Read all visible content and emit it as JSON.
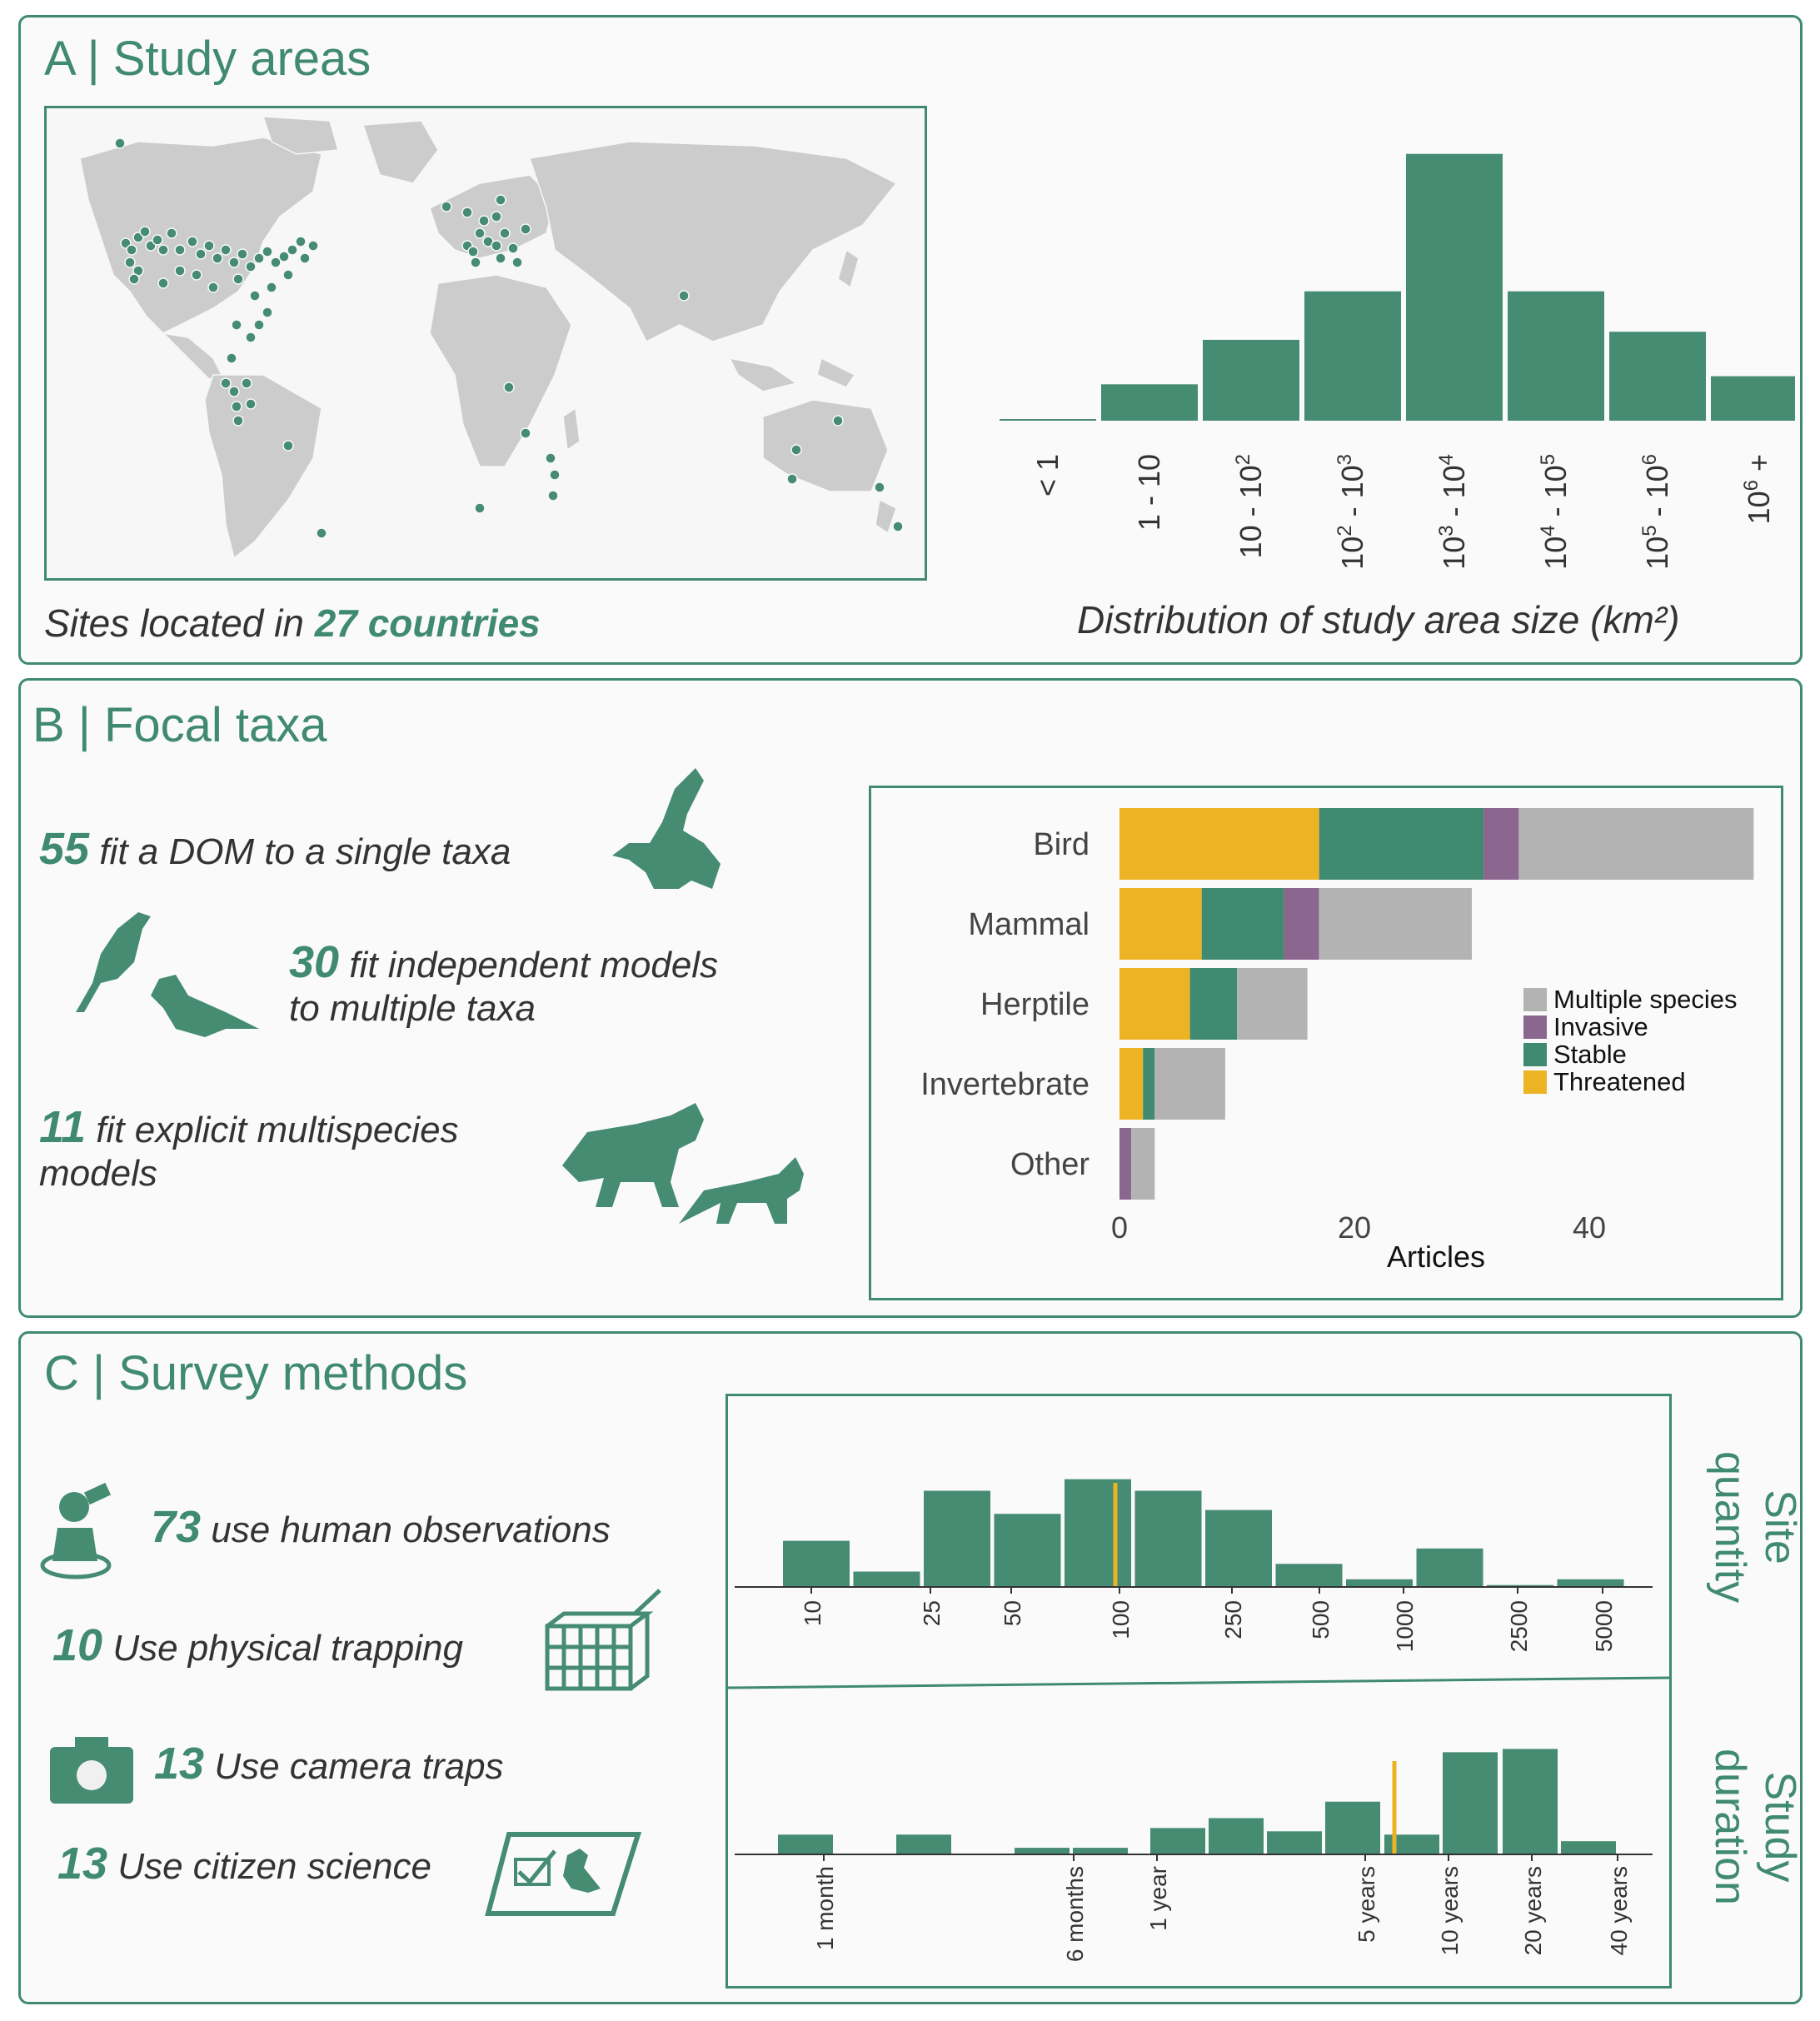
{
  "colors": {
    "accent": "#3f8a70",
    "bar": "#458c73",
    "threatened": "#ecb425",
    "stable": "#3f8a70",
    "invasive": "#8b668e",
    "multiple": "#b3b3b3",
    "land": "#cccccc",
    "median": "#ecb425"
  },
  "panelA": {
    "title": "A | Study areas",
    "caption_prefix": "Sites located in",
    "caption_highlight": "27 countries",
    "hist_caption": "Distribution of study area size (km²)"
  },
  "panelB": {
    "title": "B | Focal taxa",
    "stat1_num": "55",
    "stat1_text": "fit a DOM to a single taxa",
    "stat2_num": "30",
    "stat2_text_line1": "fit independent models",
    "stat2_text_line2": "to multiple taxa",
    "stat3_num": "11",
    "stat3_text_line1": "fit explicit multispecies",
    "stat3_text_line2": "models",
    "icons": [
      "eagle-icon",
      "finches-icon",
      "wolf-fox-icon"
    ]
  },
  "panelC": {
    "title": "C | Survey methods",
    "stat1_num": "73",
    "stat1_text": "use human observations",
    "stat2_num": "10",
    "stat2_text": "Use physical trapping",
    "stat3_num": "13",
    "stat3_text": "Use camera traps",
    "stat4_num": "13",
    "stat4_text": "Use citizen science",
    "icons": [
      "observer-icon",
      "trap-icon",
      "camera-icon",
      "citizen-science-icon"
    ]
  },
  "chart_data": [
    {
      "type": "bar",
      "categories": [
        "< 1",
        "1 - 10",
        "10 - 10^2",
        "10^2 - 10^3",
        "10^3 - 10^4",
        "10^4 - 10^5",
        "10^5 - 10^6",
        "10^6 +"
      ],
      "values": [
        0.2,
        9,
        20,
        32,
        66,
        32,
        22,
        11
      ],
      "ylim": [
        0,
        68
      ],
      "xlabel": "Distribution of study area size (km²)",
      "ylabel": ""
    },
    {
      "type": "bar",
      "orientation": "horizontal",
      "stacked": true,
      "categories": [
        "Bird",
        "Mammal",
        "Herptile",
        "Invertebrate",
        "Other"
      ],
      "series": [
        {
          "name": "Threatened",
          "values": [
            17,
            7,
            6,
            2,
            0
          ]
        },
        {
          "name": "Stable",
          "values": [
            14,
            7,
            4,
            1,
            0
          ]
        },
        {
          "name": "Invasive",
          "values": [
            3,
            3,
            0,
            0,
            1
          ]
        },
        {
          "name": "Multiple species",
          "values": [
            20,
            13,
            6,
            6,
            2
          ]
        }
      ],
      "xlabel": "Articles",
      "xticks": [
        0,
        20,
        40
      ],
      "xlim": [
        0,
        55
      ],
      "legend_order": [
        "Multiple species",
        "Invasive",
        "Stable",
        "Threatened"
      ],
      "legend": "right"
    },
    {
      "type": "bar",
      "title": "Site quantity",
      "ticks": [
        "10",
        "25",
        "50",
        "100",
        "250",
        "500",
        "1000",
        "2500",
        "5000"
      ],
      "values": [
        12,
        4,
        25,
        19,
        28,
        25,
        20,
        6,
        2,
        10,
        0.5,
        2
      ],
      "median": 100
    },
    {
      "type": "bar",
      "title": "Study duration",
      "ticks": [
        "1 month",
        "6 months",
        "1 year",
        "5 years",
        "10 years",
        "20 years",
        "40 years"
      ],
      "values": [
        6,
        6,
        2,
        2,
        8,
        11,
        7,
        16,
        6,
        31,
        32,
        4
      ],
      "median": "5 years"
    }
  ],
  "map": {
    "sites_count": 27
  }
}
